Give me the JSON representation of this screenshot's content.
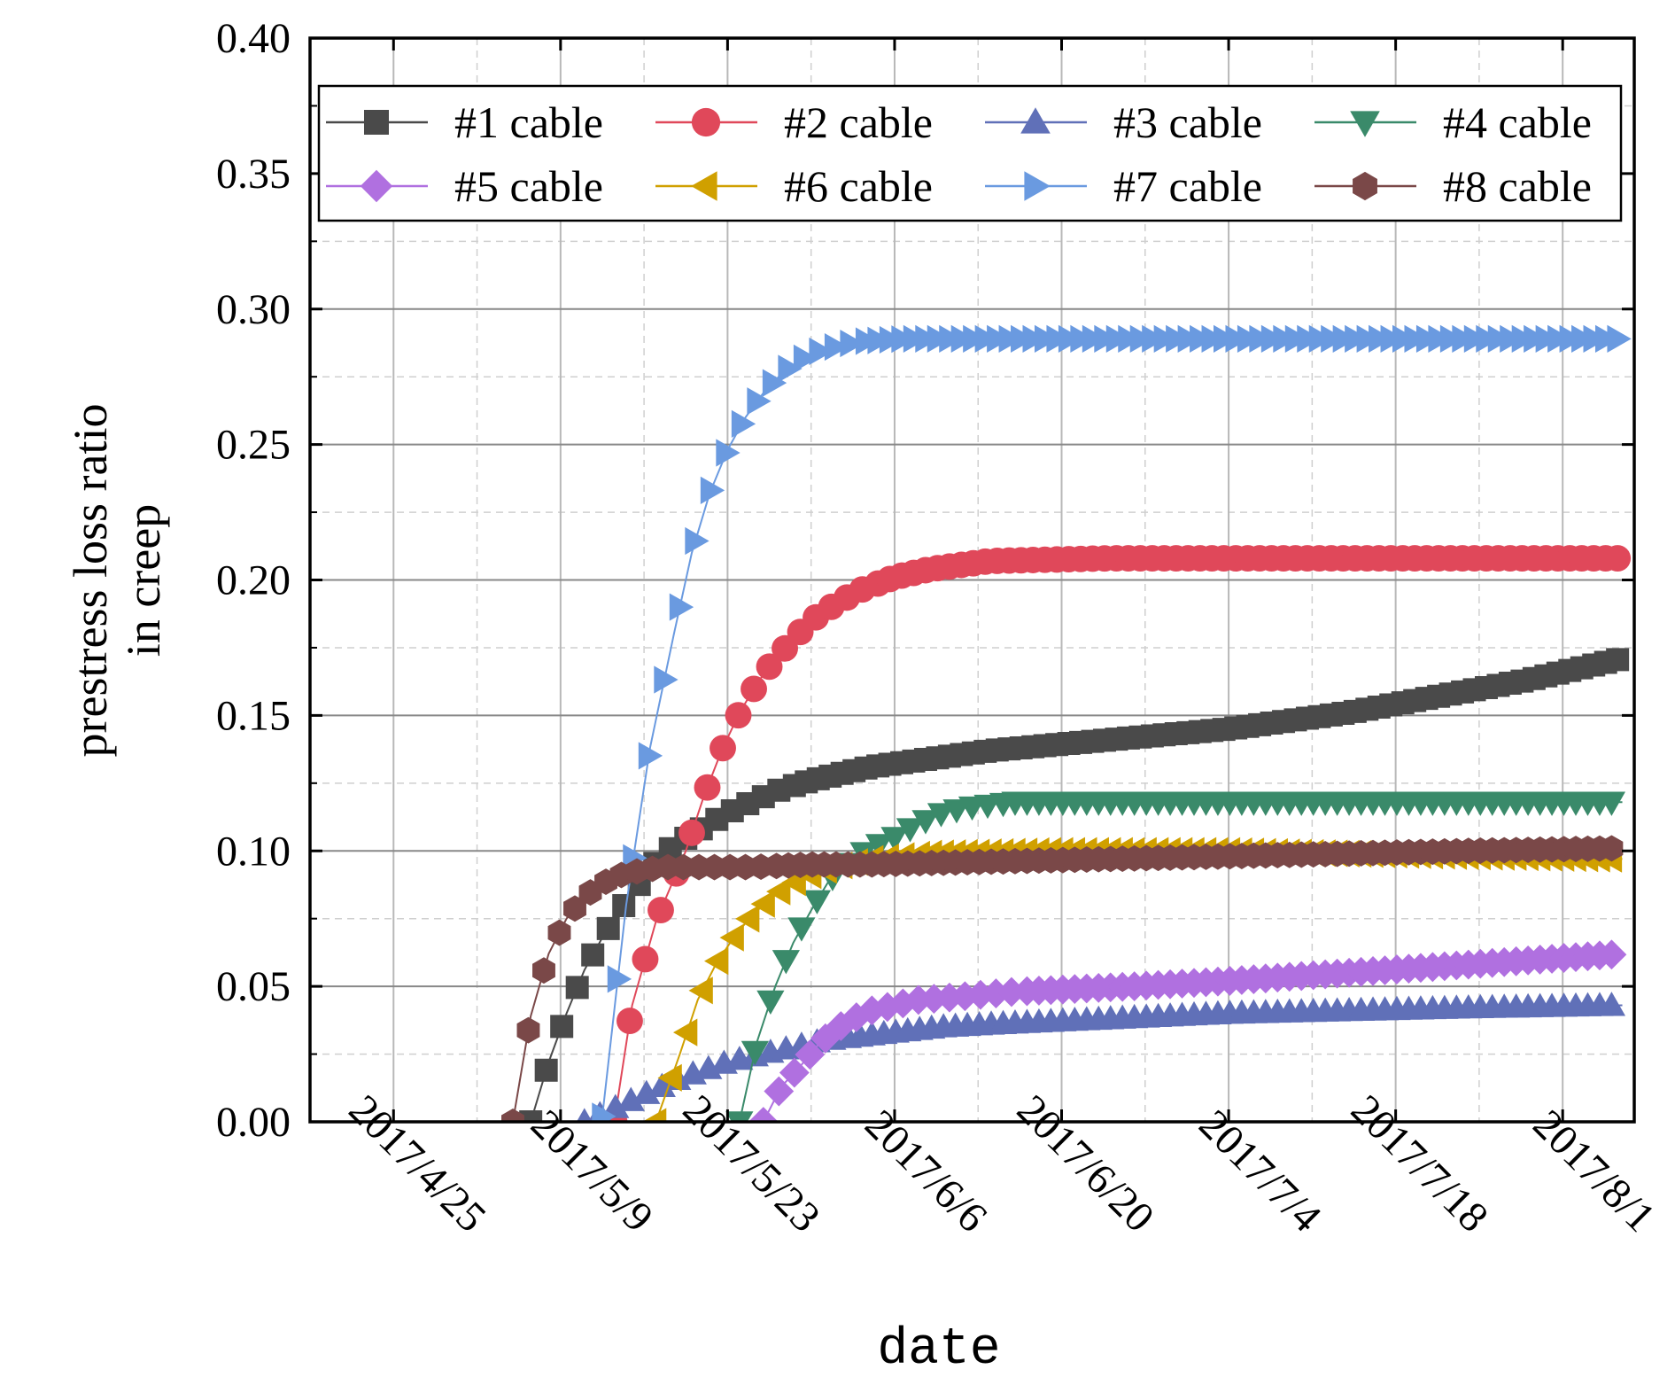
{
  "chart_data": {
    "type": "line",
    "title": "",
    "xlabel": "date",
    "ylabel_lines": [
      "prestress loss ratio",
      "in creep"
    ],
    "x_ticks": [
      "2017/4/25",
      "2017/5/9",
      "2017/5/23",
      "2017/6/6",
      "2017/6/20",
      "2017/7/4",
      "2017/7/18",
      "2017/8/1"
    ],
    "x_range_days": [
      -7,
      104
    ],
    "ylim": [
      0,
      0.4
    ],
    "y_ticks": [
      "0.00",
      "0.05",
      "0.10",
      "0.15",
      "0.20",
      "0.25",
      "0.30",
      "0.35",
      "0.40"
    ],
    "grid": true,
    "legend_position": "top",
    "x_unit": "days since 2017/4/25",
    "series": [
      {
        "name": "#1 cable",
        "color": "#4a4a4a",
        "marker": "square",
        "points": [
          [
            11.5,
            0.0
          ],
          [
            13,
            0.022
          ],
          [
            14.5,
            0.04
          ],
          [
            16,
            0.056
          ],
          [
            17.5,
            0.068
          ],
          [
            19,
            0.078
          ],
          [
            20.5,
            0.087
          ],
          [
            22,
            0.096
          ],
          [
            23.5,
            0.102
          ],
          [
            25,
            0.106
          ],
          [
            26.5,
            0.11
          ],
          [
            28,
            0.114
          ],
          [
            30,
            0.118
          ],
          [
            32,
            0.122
          ],
          [
            35,
            0.126
          ],
          [
            40,
            0.131
          ],
          [
            45,
            0.134
          ],
          [
            50,
            0.137
          ],
          [
            55,
            0.139
          ],
          [
            60,
            0.141
          ],
          [
            65,
            0.143
          ],
          [
            70,
            0.145
          ],
          [
            75,
            0.148
          ],
          [
            80,
            0.151
          ],
          [
            85,
            0.155
          ],
          [
            90,
            0.159
          ],
          [
            95,
            0.163
          ],
          [
            100,
            0.168
          ],
          [
            103,
            0.171
          ]
        ]
      },
      {
        "name": "#2 cable",
        "color": "#e0485a",
        "marker": "circle",
        "points": [
          [
            18.5,
            0.0
          ],
          [
            20,
            0.043
          ],
          [
            22,
            0.074
          ],
          [
            24.5,
            0.1
          ],
          [
            26,
            0.12
          ],
          [
            27.5,
            0.137
          ],
          [
            29,
            0.151
          ],
          [
            30.5,
            0.162
          ],
          [
            32,
            0.171
          ],
          [
            33.5,
            0.178
          ],
          [
            35,
            0.185
          ],
          [
            37,
            0.191
          ],
          [
            39,
            0.196
          ],
          [
            42,
            0.201
          ],
          [
            45,
            0.204
          ],
          [
            50,
            0.207
          ],
          [
            60,
            0.208
          ],
          [
            70,
            0.208
          ],
          [
            80,
            0.208
          ],
          [
            90,
            0.208
          ],
          [
            103,
            0.208
          ]
        ]
      },
      {
        "name": "#3 cable",
        "color": "#6070b8",
        "marker": "triangle-up",
        "points": [
          [
            16,
            0.0
          ],
          [
            18,
            0.004
          ],
          [
            20,
            0.008
          ],
          [
            22,
            0.012
          ],
          [
            24,
            0.016
          ],
          [
            26,
            0.019
          ],
          [
            28,
            0.022
          ],
          [
            30,
            0.024
          ],
          [
            32,
            0.026
          ],
          [
            34,
            0.028
          ],
          [
            36,
            0.03
          ],
          [
            38,
            0.031
          ],
          [
            42,
            0.033
          ],
          [
            46,
            0.035
          ],
          [
            50,
            0.036
          ],
          [
            55,
            0.037
          ],
          [
            60,
            0.038
          ],
          [
            70,
            0.04
          ],
          [
            80,
            0.041
          ],
          [
            90,
            0.042
          ],
          [
            103,
            0.043
          ]
        ]
      },
      {
        "name": "#4 cable",
        "color": "#3a8a6a",
        "marker": "triangle-down",
        "points": [
          [
            29,
            0.0
          ],
          [
            30.5,
            0.03
          ],
          [
            32,
            0.05
          ],
          [
            33.5,
            0.066
          ],
          [
            35,
            0.078
          ],
          [
            36.5,
            0.089
          ],
          [
            38.5,
            0.097
          ],
          [
            40,
            0.101
          ],
          [
            42,
            0.105
          ],
          [
            44,
            0.11
          ],
          [
            46,
            0.114
          ],
          [
            48,
            0.116
          ],
          [
            52,
            0.118
          ],
          [
            58,
            0.118
          ],
          [
            70,
            0.118
          ],
          [
            80,
            0.118
          ],
          [
            90,
            0.118
          ],
          [
            103,
            0.118
          ]
        ]
      },
      {
        "name": "#5 cable",
        "color": "#b070e0",
        "marker": "diamond",
        "points": [
          [
            31,
            0.0
          ],
          [
            32.5,
            0.013
          ],
          [
            34,
            0.02
          ],
          [
            35.5,
            0.028
          ],
          [
            37,
            0.034
          ],
          [
            38.5,
            0.038
          ],
          [
            40,
            0.041
          ],
          [
            42,
            0.043
          ],
          [
            44,
            0.045
          ],
          [
            47,
            0.046
          ],
          [
            52,
            0.048
          ],
          [
            57,
            0.049
          ],
          [
            62,
            0.05
          ],
          [
            70,
            0.052
          ],
          [
            80,
            0.055
          ],
          [
            90,
            0.058
          ],
          [
            103,
            0.062
          ]
        ]
      },
      {
        "name": "#6 cable",
        "color": "#d0a000",
        "marker": "triangle-left",
        "points": [
          [
            22,
            0.0
          ],
          [
            24,
            0.025
          ],
          [
            25.5,
            0.045
          ],
          [
            27,
            0.058
          ],
          [
            28.5,
            0.068
          ],
          [
            30,
            0.076
          ],
          [
            31.5,
            0.082
          ],
          [
            33,
            0.087
          ],
          [
            35,
            0.091
          ],
          [
            37,
            0.094
          ],
          [
            40,
            0.097
          ],
          [
            45,
            0.099
          ],
          [
            55,
            0.1
          ],
          [
            70,
            0.1
          ],
          [
            80,
            0.099
          ],
          [
            90,
            0.098
          ],
          [
            103,
            0.097
          ]
        ]
      },
      {
        "name": "#7 cable",
        "color": "#6a9ae0",
        "marker": "triangle-right",
        "points": [
          [
            17.5,
            0.002
          ],
          [
            19.5,
            0.08
          ],
          [
            21.5,
            0.138
          ],
          [
            23.5,
            0.18
          ],
          [
            25,
            0.21
          ],
          [
            26.5,
            0.232
          ],
          [
            28,
            0.248
          ],
          [
            29.5,
            0.26
          ],
          [
            31,
            0.269
          ],
          [
            32.5,
            0.276
          ],
          [
            34,
            0.281
          ],
          [
            36,
            0.285
          ],
          [
            39,
            0.288
          ],
          [
            43,
            0.289
          ],
          [
            50,
            0.289
          ],
          [
            60,
            0.289
          ],
          [
            70,
            0.289
          ],
          [
            80,
            0.289
          ],
          [
            90,
            0.289
          ],
          [
            103,
            0.289
          ]
        ]
      },
      {
        "name": "#8 cable",
        "color": "#7a4848",
        "marker": "hexagon",
        "points": [
          [
            10,
            0.0
          ],
          [
            11.5,
            0.039
          ],
          [
            13,
            0.062
          ],
          [
            14.5,
            0.075
          ],
          [
            16,
            0.083
          ],
          [
            17.5,
            0.088
          ],
          [
            19,
            0.091
          ],
          [
            21,
            0.093
          ],
          [
            23,
            0.094
          ],
          [
            26,
            0.094
          ],
          [
            30,
            0.094
          ],
          [
            35,
            0.095
          ],
          [
            40,
            0.095
          ],
          [
            50,
            0.096
          ],
          [
            60,
            0.097
          ],
          [
            70,
            0.098
          ],
          [
            80,
            0.099
          ],
          [
            90,
            0.1
          ],
          [
            103,
            0.101
          ]
        ]
      }
    ]
  }
}
